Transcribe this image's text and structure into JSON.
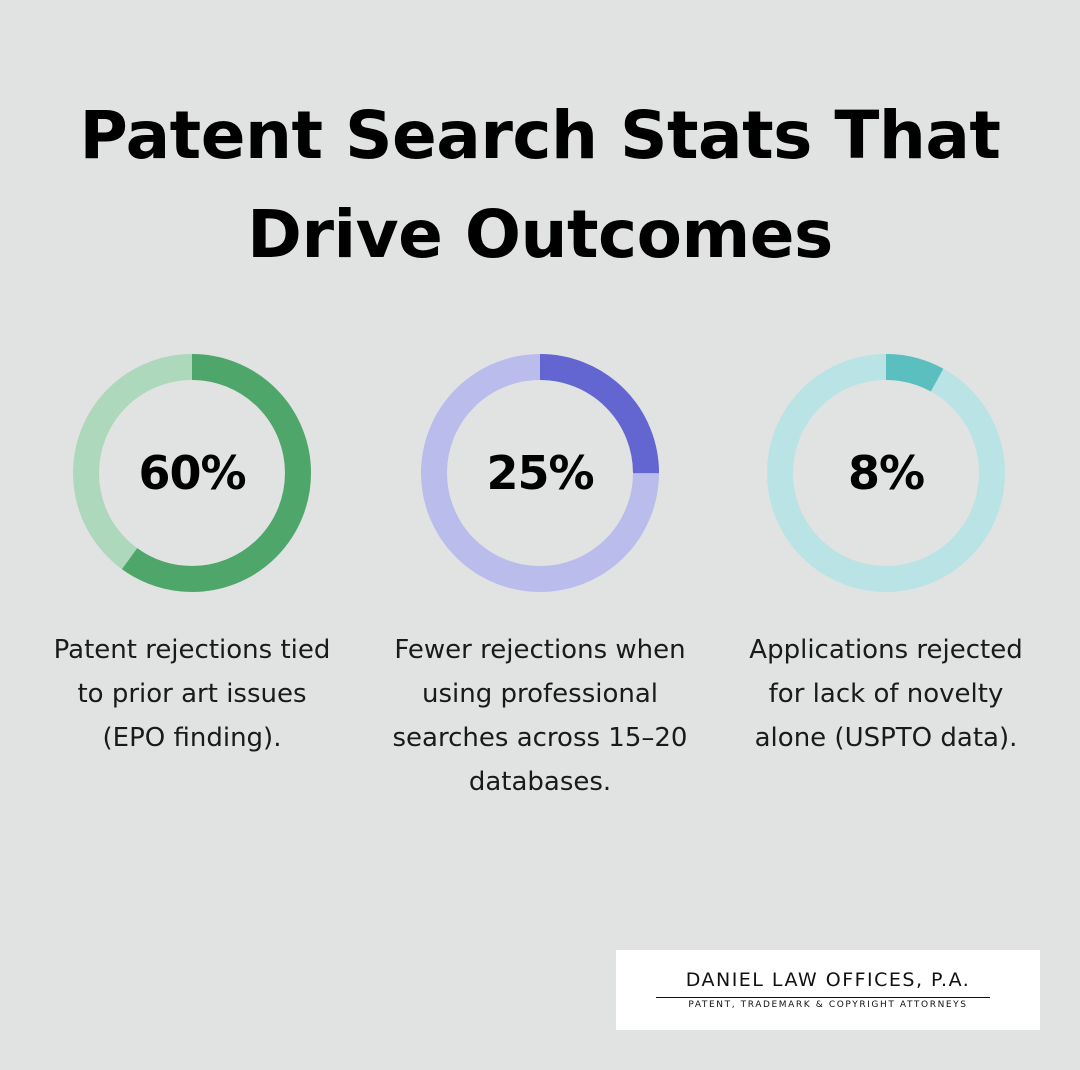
{
  "title": {
    "line1": "Patent Search Stats That",
    "line2": "Drive Outcomes"
  },
  "chart_data": [
    {
      "type": "donut",
      "value": 60,
      "label": "60%",
      "description": "Patent rejections tied to prior art issues (EPO finding).",
      "colors": {
        "filled": "#4fa66b",
        "track": "#aed8bc"
      }
    },
    {
      "type": "donut",
      "value": 25,
      "label": "25%",
      "description": "Fewer rejections when using professional searches across 15–20 databases.",
      "colors": {
        "filled": "#6366d1",
        "track": "#babdec"
      }
    },
    {
      "type": "donut",
      "value": 8,
      "label": "8%",
      "description": "Applications rejected for lack of novelty alone (USPTO data).",
      "colors": {
        "filled": "#5bbfc0",
        "track": "#b9e3e4"
      }
    }
  ],
  "logo": {
    "name": "DANIEL LAW OFFICES, P.A.",
    "tagline": "PATENT, TRADEMARK & COPYRIGHT ATTORNEYS"
  },
  "colors": {
    "background": "#e1e3e2",
    "text": "#000000",
    "logo_background": "#ffffff"
  }
}
